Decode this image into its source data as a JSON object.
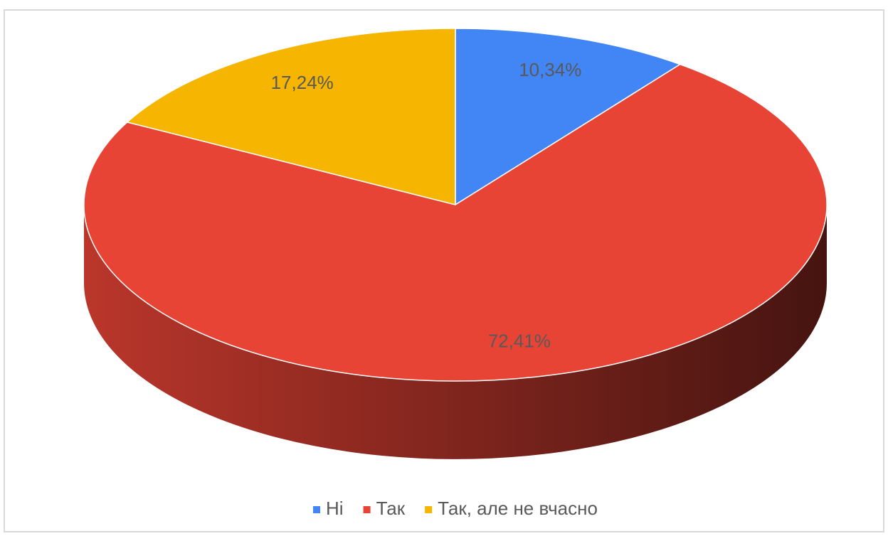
{
  "chart_data": {
    "type": "pie3d",
    "categories": [
      "Ні",
      "Так",
      "Так, але не вчасно"
    ],
    "values": [
      10.34,
      72.41,
      17.24
    ],
    "value_labels": [
      "10,34%",
      "72,41%",
      "17,24%"
    ],
    "colors": [
      "#4285f4",
      "#e84436",
      "#f6b500"
    ],
    "legend": "bottom"
  }
}
